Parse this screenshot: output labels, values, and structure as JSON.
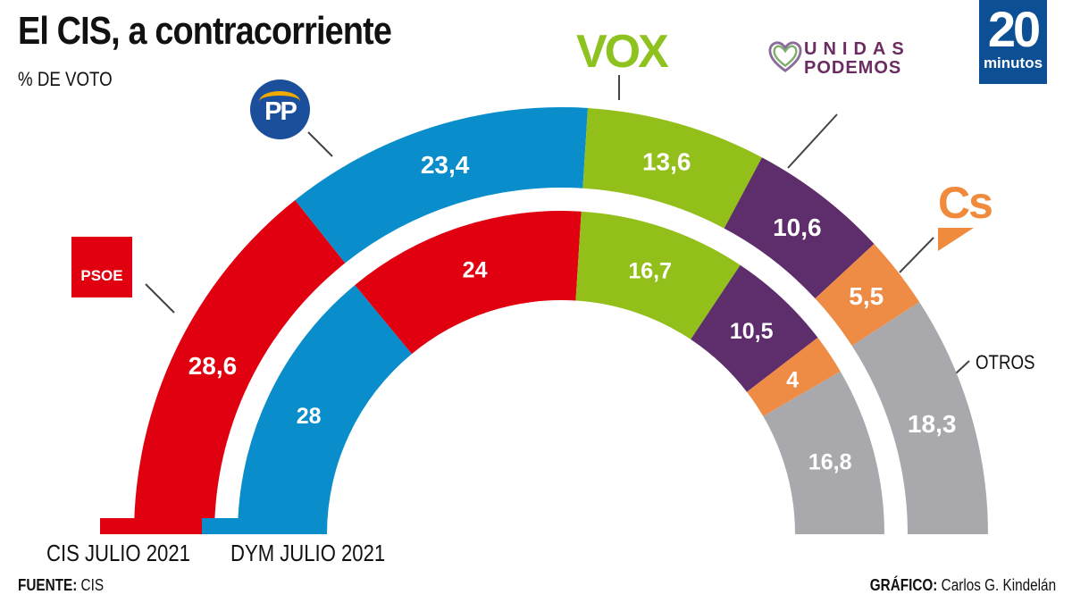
{
  "header": {
    "title": "El CIS, a contracorriente",
    "subtitle": "% DE VOTO"
  },
  "brand": {
    "logo_number": "20",
    "logo_word": "minutos",
    "color": "#0d4f94"
  },
  "party_logos": {
    "psoe": "PSOE",
    "pp": "PP",
    "vox": "VOX",
    "up_line1": "UNIDAS",
    "up_line2": "PODEMOS",
    "cs": "Cs",
    "otros": "OTROS"
  },
  "footer": {
    "source_label": "FUENTE:",
    "source_value": " CIS",
    "credit_label": "GRÁFICO:",
    "credit_value": " Carlos G. Kindelán"
  },
  "chart_data": {
    "type": "pie",
    "subtype": "nested-semicircle (parliament arc)",
    "title": "El CIS, a contracorriente",
    "subtitle": "% DE VOTO",
    "unit": "%",
    "parties": [
      "PSOE",
      "PP",
      "VOX",
      "Unidas Podemos",
      "Cs",
      "Otros"
    ],
    "colors": {
      "PSOE": "#e1000f",
      "PP": "#0a8ecb",
      "VOX": "#93bf1a",
      "Unidas Podemos": "#5e2d6b",
      "Cs": "#ee8b45",
      "Otros": "#a9a9ad"
    },
    "series": [
      {
        "name": "CIS JULIO 2021",
        "ring": "outer",
        "segments": [
          {
            "party": "PSOE",
            "value": 28.6,
            "label": "28,6"
          },
          {
            "party": "PP",
            "value": 23.4,
            "label": "23,4"
          },
          {
            "party": "VOX",
            "value": 13.6,
            "label": "13,6"
          },
          {
            "party": "Unidas Podemos",
            "value": 10.6,
            "label": "10,6"
          },
          {
            "party": "Cs",
            "value": 5.5,
            "label": "5,5"
          },
          {
            "party": "Otros",
            "value": 18.3,
            "label": "18,3"
          }
        ]
      },
      {
        "name": "DYM JULIO 2021",
        "ring": "inner",
        "segments": [
          {
            "party": "PP",
            "value": 28,
            "label": "28"
          },
          {
            "party": "PSOE",
            "value": 24,
            "label": "24"
          },
          {
            "party": "VOX",
            "value": 16.7,
            "label": "16,7"
          },
          {
            "party": "Unidas Podemos",
            "value": 10.5,
            "label": "10,5"
          },
          {
            "party": "Cs",
            "value": 4,
            "label": "4"
          },
          {
            "party": "Otros",
            "value": 16.8,
            "label": "16,8"
          }
        ]
      }
    ],
    "legend": [
      "CIS JULIO 2021",
      "DYM JULIO 2021"
    ],
    "legend_placement": "bottom"
  }
}
